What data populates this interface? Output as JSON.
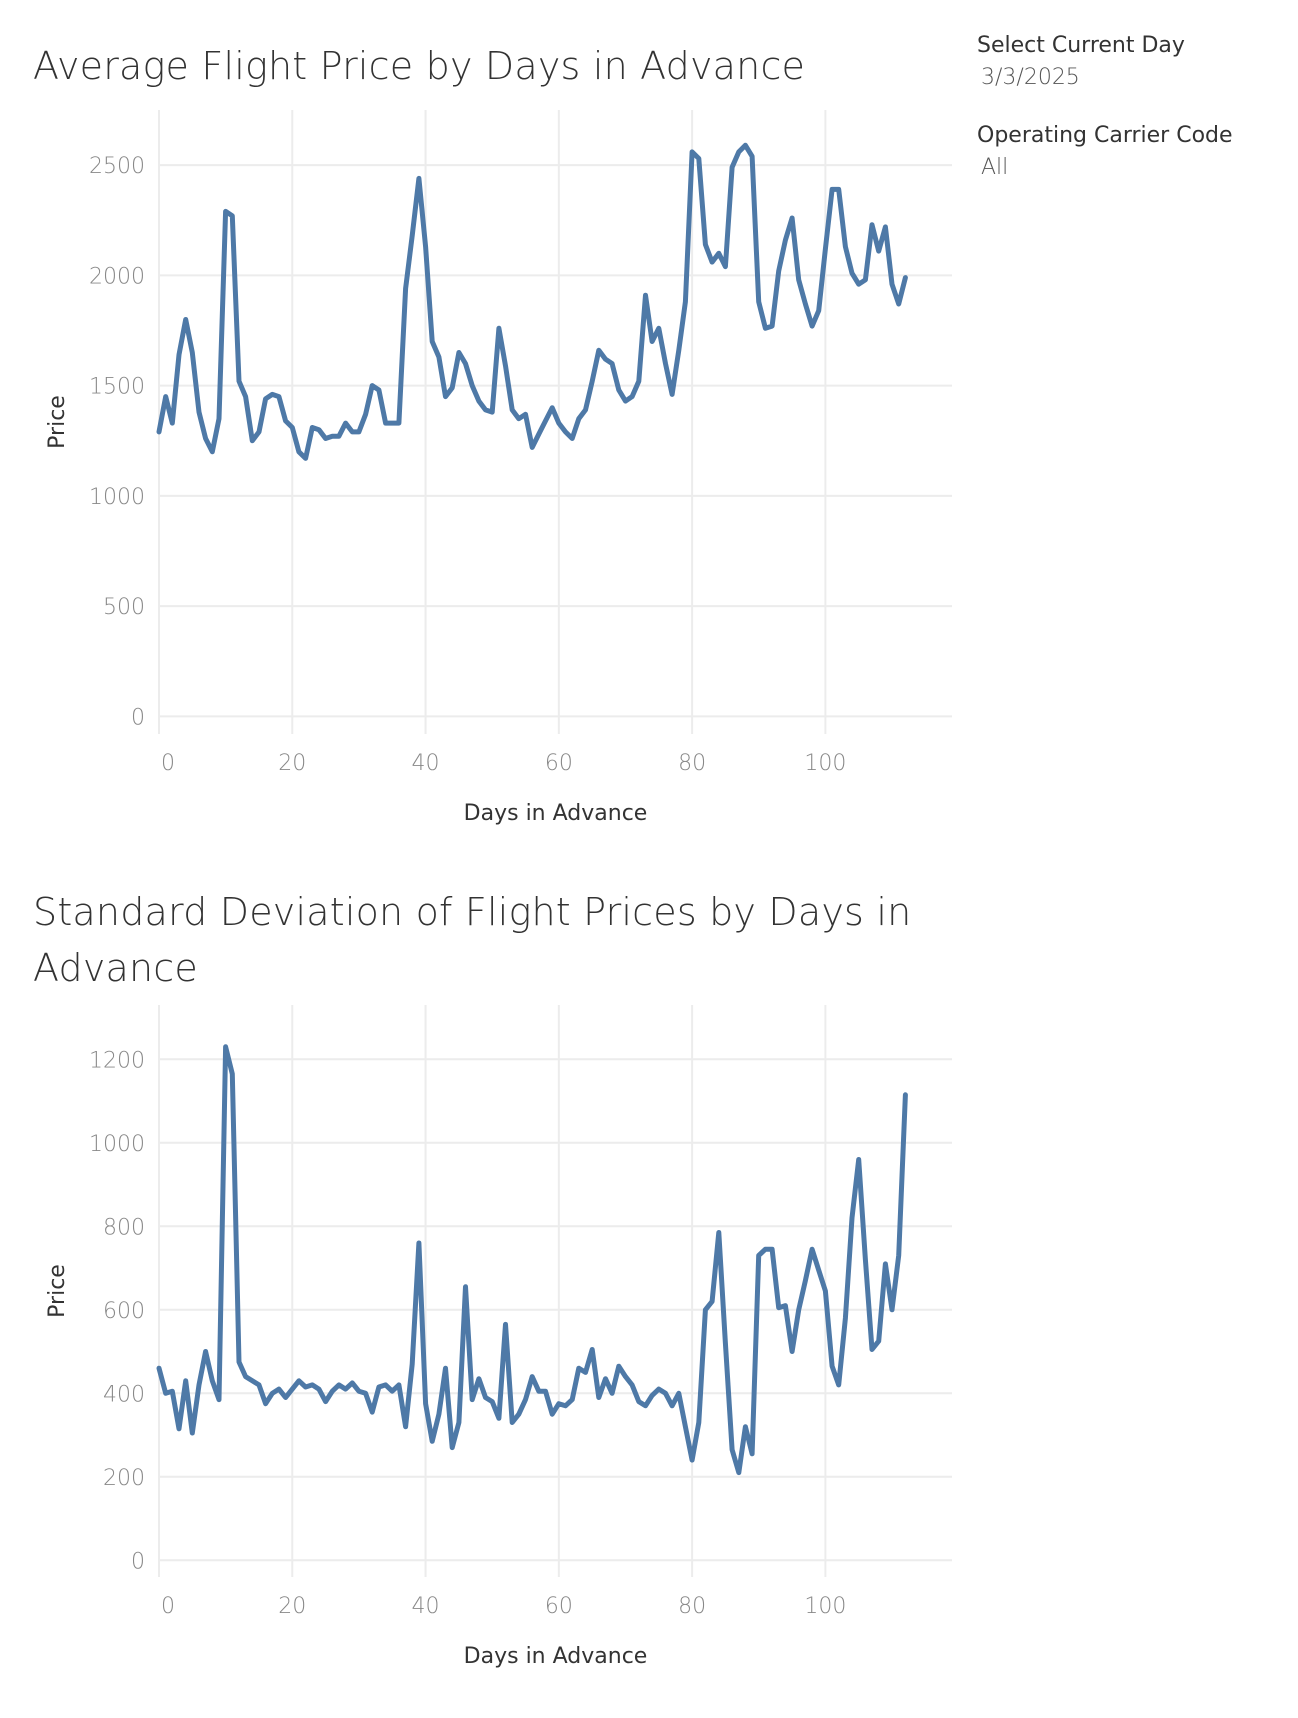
{
  "filters": {
    "current_day": {
      "label": "Select Current Day",
      "value": "3/3/2025"
    },
    "carrier": {
      "label": "Operating Carrier Code",
      "value": "All"
    }
  },
  "colors": {
    "line": "#4e79a7",
    "grid": "#ececec",
    "tick_text": "#888888",
    "axis_title": "#333333"
  },
  "chart_data": [
    {
      "type": "line",
      "title": "Average Flight Price by Days in Advance",
      "xlabel": "Days in Advance",
      "ylabel": "Price",
      "xlim": [
        0,
        119
      ],
      "ylim": [
        -80,
        2750
      ],
      "xticks": [
        0,
        20,
        40,
        60,
        80,
        100
      ],
      "yticks": [
        0,
        500,
        1000,
        1500,
        2000,
        2500
      ],
      "grid": true,
      "x": [
        0,
        1,
        2,
        3,
        4,
        5,
        6,
        7,
        8,
        9,
        10,
        11,
        12,
        13,
        14,
        15,
        16,
        17,
        18,
        19,
        20,
        21,
        22,
        23,
        24,
        25,
        26,
        27,
        28,
        29,
        30,
        31,
        32,
        33,
        34,
        35,
        36,
        37,
        38,
        39,
        40,
        41,
        42,
        43,
        44,
        45,
        46,
        47,
        48,
        49,
        50,
        51,
        52,
        53,
        54,
        55,
        56,
        57,
        58,
        59,
        60,
        61,
        62,
        63,
        64,
        65,
        66,
        67,
        68,
        69,
        70,
        71,
        72,
        73,
        74,
        75,
        76,
        77,
        78,
        79,
        80,
        81,
        82,
        83,
        84,
        85,
        86,
        87,
        88,
        89,
        90,
        91,
        92,
        93,
        94,
        95,
        96,
        97,
        98,
        99,
        100,
        101,
        102,
        103,
        104,
        105,
        106,
        107,
        108,
        109,
        110,
        111,
        112
      ],
      "values": [
        1290,
        1450,
        1330,
        1640,
        1800,
        1650,
        1380,
        1260,
        1200,
        1350,
        2290,
        2270,
        1520,
        1450,
        1250,
        1290,
        1440,
        1460,
        1450,
        1340,
        1310,
        1200,
        1170,
        1310,
        1300,
        1260,
        1270,
        1270,
        1330,
        1290,
        1290,
        1370,
        1500,
        1480,
        1330,
        1330,
        1330,
        1940,
        2180,
        2440,
        2130,
        1700,
        1630,
        1450,
        1490,
        1650,
        1600,
        1500,
        1430,
        1390,
        1380,
        1760,
        1590,
        1390,
        1350,
        1370,
        1220,
        1280,
        1340,
        1400,
        1330,
        1290,
        1260,
        1350,
        1390,
        1520,
        1660,
        1620,
        1600,
        1480,
        1430,
        1450,
        1520,
        1910,
        1700,
        1760,
        1600,
        1460,
        1660,
        1880,
        2560,
        2530,
        2140,
        2060,
        2100,
        2040,
        2490,
        2560,
        2590,
        2540,
        1880,
        1760,
        1770,
        2020,
        2160,
        2260,
        1980,
        1870,
        1770,
        1840,
        2120,
        2390,
        2390,
        2130,
        2010,
        1960,
        1980,
        2230,
        2110,
        2220,
        1960,
        1870,
        1990
      ],
      "series": [
        {
          "values_ref": "values"
        }
      ]
    },
    {
      "type": "line",
      "title": "Standard Deviation of Flight Prices by Days in Advance",
      "xlabel": "Days in Advance",
      "ylabel": "Price",
      "xlim": [
        0,
        119
      ],
      "ylim": [
        -40,
        1330
      ],
      "xticks": [
        0,
        20,
        40,
        60,
        80,
        100
      ],
      "yticks": [
        0,
        200,
        400,
        600,
        800,
        1000,
        1200
      ],
      "grid": true,
      "x": [
        0,
        1,
        2,
        3,
        4,
        5,
        6,
        7,
        8,
        9,
        10,
        11,
        12,
        13,
        14,
        15,
        16,
        17,
        18,
        19,
        20,
        21,
        22,
        23,
        24,
        25,
        26,
        27,
        28,
        29,
        30,
        31,
        32,
        33,
        34,
        35,
        36,
        37,
        38,
        39,
        40,
        41,
        42,
        43,
        44,
        45,
        46,
        47,
        48,
        49,
        50,
        51,
        52,
        53,
        54,
        55,
        56,
        57,
        58,
        59,
        60,
        61,
        62,
        63,
        64,
        65,
        66,
        67,
        68,
        69,
        70,
        71,
        72,
        73,
        74,
        75,
        76,
        77,
        78,
        79,
        80,
        81,
        82,
        83,
        84,
        85,
        86,
        87,
        88,
        89,
        90,
        91,
        92,
        93,
        94,
        95,
        96,
        97,
        98,
        99,
        100,
        101,
        102,
        103,
        104,
        105,
        106,
        107,
        108,
        109,
        110,
        111,
        112
      ],
      "values": [
        460,
        400,
        405,
        315,
        430,
        305,
        420,
        500,
        430,
        385,
        1230,
        1165,
        475,
        440,
        430,
        420,
        375,
        400,
        410,
        390,
        410,
        430,
        415,
        420,
        410,
        380,
        405,
        420,
        410,
        425,
        405,
        400,
        355,
        415,
        420,
        405,
        420,
        320,
        470,
        760,
        375,
        285,
        350,
        460,
        270,
        330,
        655,
        385,
        435,
        390,
        380,
        340,
        565,
        330,
        350,
        385,
        440,
        405,
        405,
        350,
        375,
        370,
        385,
        460,
        450,
        505,
        390,
        435,
        400,
        465,
        440,
        420,
        380,
        370,
        395,
        410,
        400,
        370,
        400,
        320,
        240,
        330,
        600,
        620,
        785,
        520,
        265,
        210,
        320,
        255,
        730,
        745,
        745,
        605,
        610,
        500,
        600,
        670,
        745,
        695,
        645,
        465,
        420,
        580,
        820,
        960,
        720,
        505,
        525,
        710,
        600,
        730,
        1115
      ]
    }
  ]
}
